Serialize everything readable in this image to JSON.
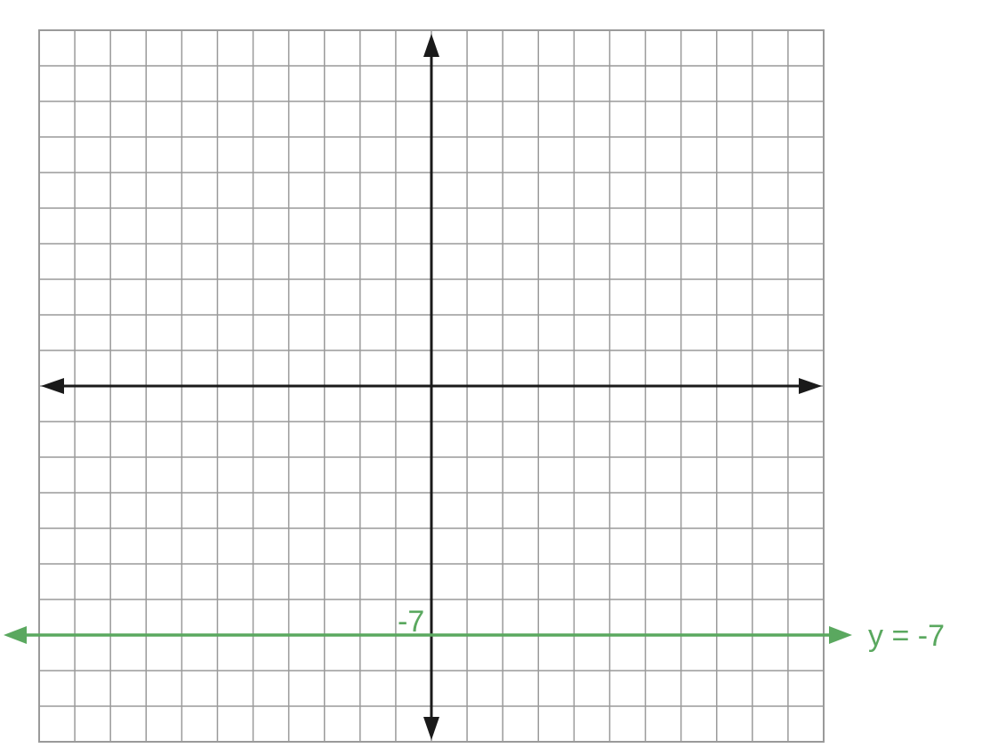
{
  "colors": {
    "grid": "#9a9a9a",
    "axis": "#1a1a1a",
    "highlight_line": "#5aa85f"
  },
  "plane": {
    "x_range": [
      -11,
      11
    ],
    "y_range": [
      -10,
      10
    ],
    "grid_step": 1
  },
  "line": {
    "equation_label": "y = -7",
    "y_value": -7,
    "intercept_label": "-7"
  }
}
